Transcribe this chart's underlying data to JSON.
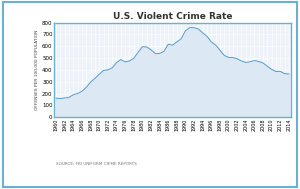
{
  "title": "U.S. Violent Crime Rate",
  "ylabel": "OFFENSES PER 100,000 POPULATION",
  "source": "SOURCE: FBI UNIFORM CRIME REPORTS",
  "ylim": [
    0,
    800
  ],
  "yticks": [
    0,
    100,
    200,
    300,
    400,
    500,
    600,
    700,
    800
  ],
  "years": [
    1960,
    1961,
    1962,
    1963,
    1964,
    1965,
    1966,
    1967,
    1968,
    1969,
    1970,
    1971,
    1972,
    1973,
    1974,
    1975,
    1976,
    1977,
    1978,
    1979,
    1980,
    1981,
    1982,
    1983,
    1984,
    1985,
    1986,
    1987,
    1988,
    1989,
    1990,
    1991,
    1992,
    1993,
    1994,
    1995,
    1996,
    1997,
    1998,
    1999,
    2000,
    2001,
    2002,
    2003,
    2004,
    2005,
    2006,
    2007,
    2008,
    2009,
    2010,
    2011,
    2012,
    2013,
    2014
  ],
  "values": [
    160.9,
    158.1,
    162.3,
    168.2,
    190.6,
    200.2,
    220.0,
    253.2,
    298.4,
    328.7,
    363.5,
    396.0,
    401.0,
    417.4,
    461.1,
    487.8,
    467.8,
    475.9,
    497.8,
    548.9,
    596.6,
    594.3,
    571.1,
    537.7,
    539.2,
    556.6,
    617.7,
    609.7,
    637.2,
    663.1,
    731.8,
    758.2,
    757.5,
    746.8,
    713.6,
    684.5,
    636.6,
    611.0,
    567.6,
    523.0,
    506.5,
    504.5,
    494.4,
    475.8,
    463.2,
    469.0,
    479.3,
    471.8,
    458.6,
    431.9,
    404.5,
    387.1,
    387.8,
    369.1,
    365.5
  ],
  "fill_color": "#dce9f5",
  "line_color": "#5b9dc9",
  "bg_color": "#eef3f9",
  "border_color": "#6aafd6",
  "fig_bg": "#ffffff",
  "vgrid_color": "#ffffff",
  "hgrid_color": "#ffffff"
}
